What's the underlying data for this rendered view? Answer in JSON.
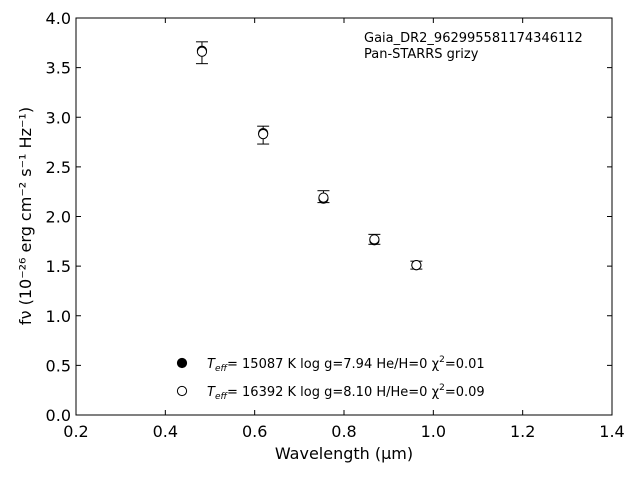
{
  "chart_data": {
    "type": "scatter",
    "xlim": [
      0.2,
      1.4
    ],
    "ylim": [
      0.0,
      4.0
    ],
    "x_ticks": [
      "0.2",
      "0.4",
      "0.6",
      "0.8",
      "1.0",
      "1.2",
      "1.4"
    ],
    "y_ticks": [
      "0.0",
      "0.5",
      "1.0",
      "1.5",
      "2.0",
      "2.5",
      "3.0",
      "3.5",
      "4.0"
    ],
    "xlabel": "Wavelength (μm)",
    "ylabel": "fν (10⁻²⁶ erg cm⁻² s⁻¹ Hz⁻¹)",
    "annotation_lines": [
      "Gaia_DR2_962995581174346112",
      "Pan-STARRS grizy"
    ],
    "grid": false,
    "legend_position": "bottom-center",
    "observed": {
      "x": [
        0.482,
        0.619,
        0.754,
        0.868,
        0.962
      ],
      "y": [
        3.65,
        2.82,
        2.2,
        1.77,
        1.51
      ],
      "yerr": [
        0.11,
        0.09,
        0.06,
        0.05,
        0.04
      ]
    },
    "series": [
      {
        "name": "Teff= 15087 K  log g=7.94  He/H=0  χ²=0.01",
        "marker": "filled",
        "x": [
          0.482,
          0.619,
          0.754,
          0.868,
          0.962
        ],
        "y": [
          3.67,
          2.84,
          2.18,
          1.76,
          1.51
        ]
      },
      {
        "name": "Teff= 16392 K  log g=8.10  H/He=0  χ²=0.09",
        "marker": "open",
        "x": [
          0.482,
          0.619,
          0.754,
          0.868,
          0.962
        ],
        "y": [
          3.66,
          2.83,
          2.19,
          1.77,
          1.51
        ]
      }
    ],
    "legend": [
      {
        "marker": "filled",
        "t": "T",
        "t_sub": "eff",
        "rest": "= 15087 K  log g=7.94  He/H=0  χ",
        "sup": "2",
        "tail": "=0.01"
      },
      {
        "marker": "open",
        "t": "T",
        "t_sub": "eff",
        "rest": "= 16392 K  log g=8.10  H/He=0  χ",
        "sup": "2",
        "tail": "=0.09"
      }
    ]
  }
}
